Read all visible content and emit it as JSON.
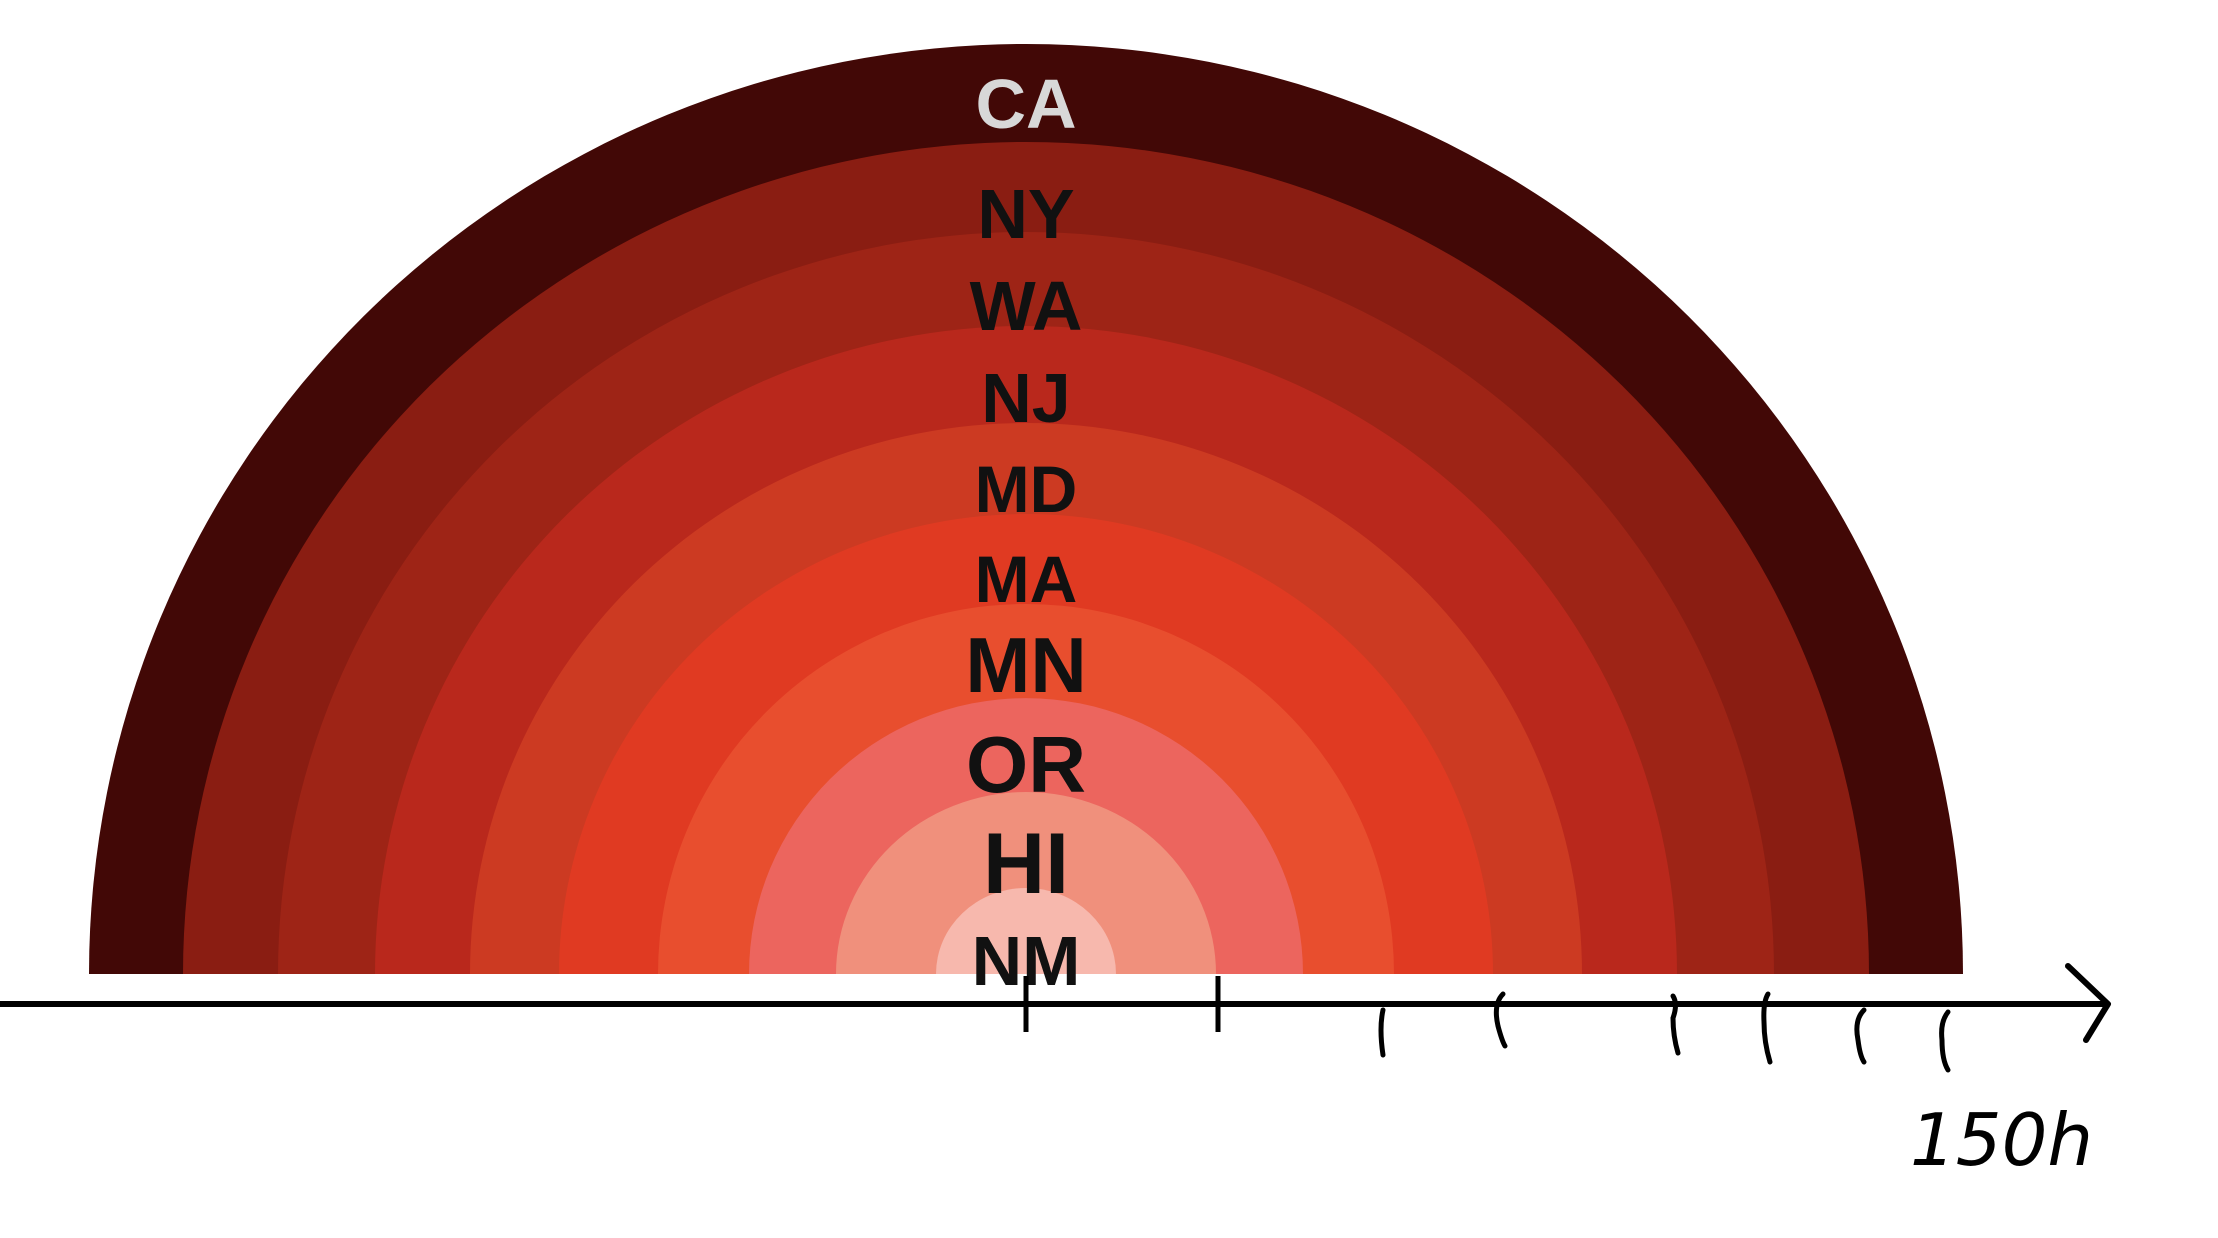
{
  "chart_data": {
    "type": "nested-semicircle",
    "title": "",
    "rings": [
      {
        "label": "CA",
        "color": "#420806",
        "label_color": "#d8d8d8"
      },
      {
        "label": "NY",
        "color": "#8a1d12",
        "label_color": "#111111"
      },
      {
        "label": "WA",
        "color": "#9e2416",
        "label_color": "#111111"
      },
      {
        "label": "NJ",
        "color": "#b9281c",
        "label_color": "#111111"
      },
      {
        "label": "MD",
        "color": "#cc3a22",
        "label_color": "#111111"
      },
      {
        "label": "MA",
        "color": "#e03a22",
        "label_color": "#111111"
      },
      {
        "label": "MN",
        "color": "#e84e2e",
        "label_color": "#111111"
      },
      {
        "label": "OR",
        "color": "#ec655e",
        "label_color": "#111111"
      },
      {
        "label": "HI",
        "color": "#f0907c",
        "label_color": "#111111"
      },
      {
        "label": "NM",
        "color": "#f7b8ad",
        "label_color": "#111111"
      }
    ],
    "axis_annotation": "150h"
  }
}
